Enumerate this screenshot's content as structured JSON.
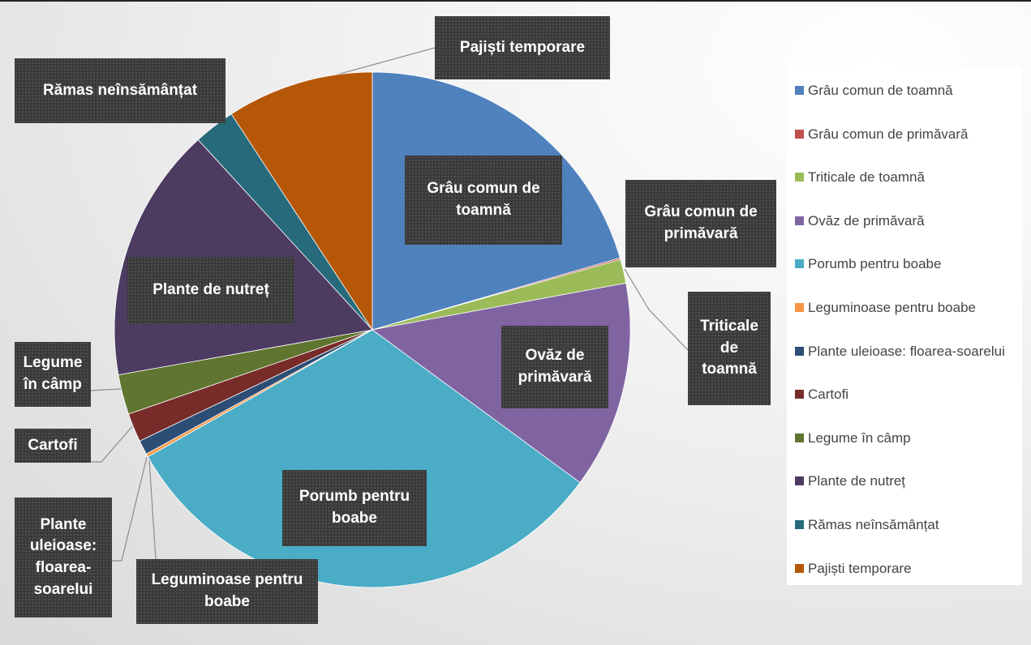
{
  "chart_data": {
    "type": "pie",
    "categories": [
      "Grâu comun de toamnă",
      "Grâu comun de primăvară",
      "Triticale de toamnă",
      "Ovăz de primăvară",
      "Porumb pentru boabe",
      "Leguminoase pentru boabe",
      "Plante uleioase: floarea-soarelui",
      "Cartofi",
      "Legume în câmp",
      "Plante de nutreț",
      "Rămas neînsămânțat",
      "Pajiști temporare"
    ],
    "values": [
      20.5,
      0.1,
      1.5,
      13,
      31.7,
      0.2,
      0.9,
      1.8,
      2.5,
      16,
      2.6,
      9.2
    ],
    "colors": [
      "#4f81bd",
      "#c0504d",
      "#9bbb59",
      "#8064a2",
      "#4bacc6",
      "#f79646",
      "#2c4d75",
      "#772c2a",
      "#5f7530",
      "#4d3b62",
      "#276a7c",
      "#b65708"
    ],
    "legend": "right"
  }
}
